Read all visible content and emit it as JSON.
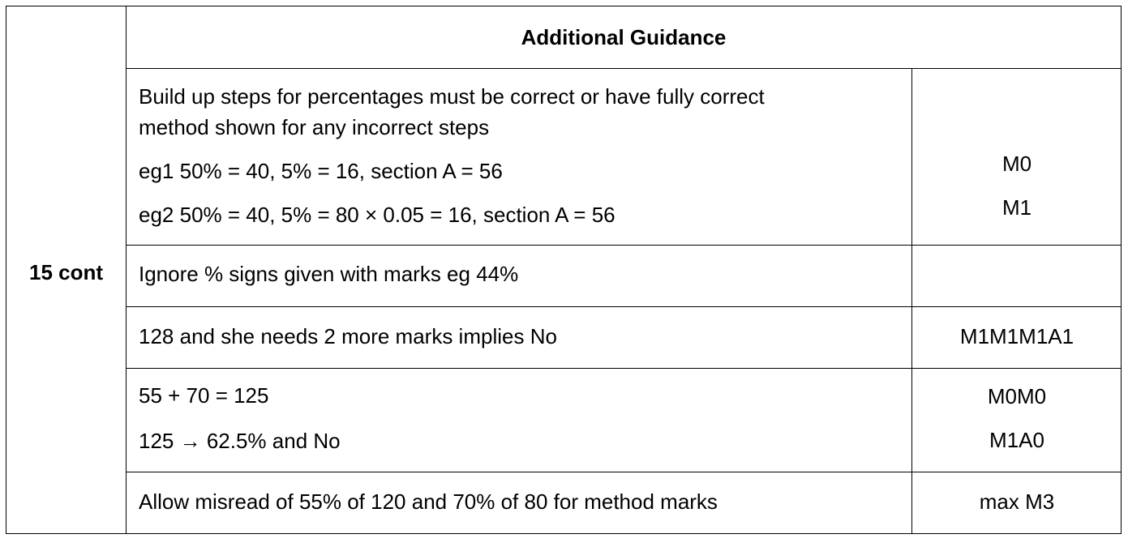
{
  "question_label": "15 cont",
  "header": "Additional Guidance",
  "rows": [
    {
      "lines": [
        "Build up steps for percentages must be correct or have fully correct",
        "method shown for any incorrect steps",
        "eg1  50% = 40,  5% = 16,  section A = 56",
        "eg2  50% = 40,  5% = 80 × 0.05 = 16,  section A = 56"
      ],
      "marks": [
        "M0",
        "M1"
      ]
    },
    {
      "lines": [
        "Ignore % signs given with marks eg 44%"
      ],
      "marks": []
    },
    {
      "lines": [
        "128 and she needs 2 more marks implies No"
      ],
      "marks": [
        "M1M1M1A1"
      ]
    },
    {
      "lines": [
        "55 + 70 = 125",
        "125 → 62.5% and No"
      ],
      "marks": [
        "M0M0",
        "M1A0"
      ]
    },
    {
      "lines": [
        "Allow misread of 55% of 120 and 70% of 80 for method marks"
      ],
      "marks": [
        "max M3"
      ]
    }
  ]
}
